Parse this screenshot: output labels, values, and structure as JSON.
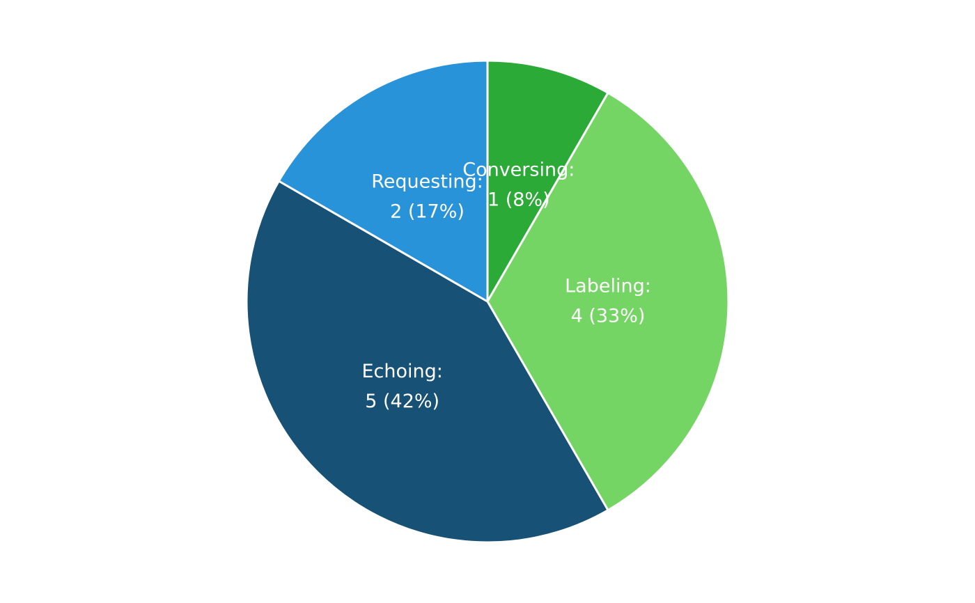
{
  "chart_data": {
    "type": "pie",
    "categories": [
      "Conversing:",
      "Labeling:",
      "Echoing:",
      "Requesting:"
    ],
    "values": [
      1,
      4,
      5,
      2
    ],
    "value_labels": [
      "1 (8%)",
      "4 (33%)",
      "5 (42%)",
      "2 (17%)"
    ],
    "colors": [
      "#2caa37",
      "#75d564",
      "#175176",
      "#2993da"
    ]
  }
}
